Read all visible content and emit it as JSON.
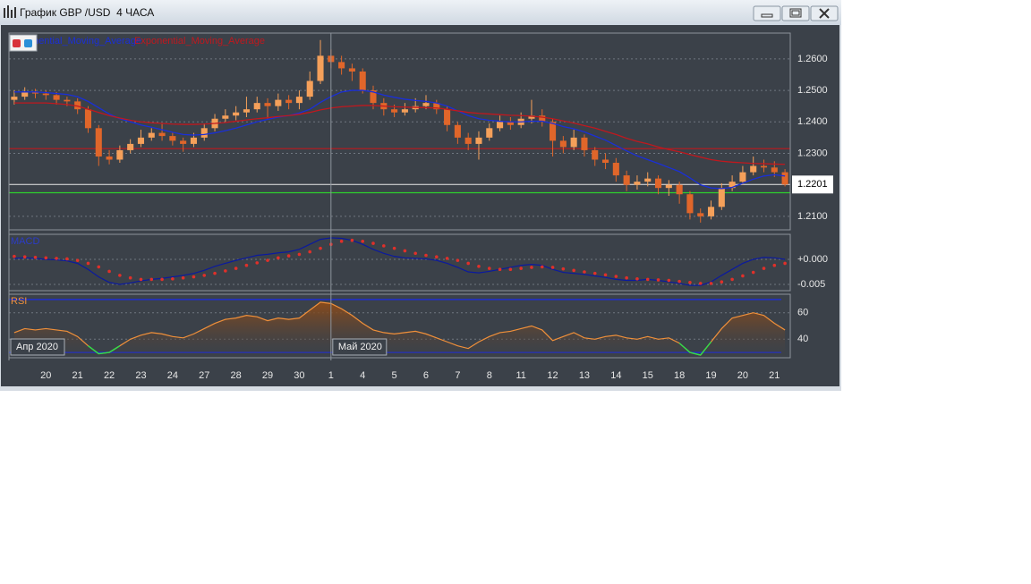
{
  "window": {
    "title": "График GBP /USD  4 ЧАСА"
  },
  "chart_data": [
    {
      "type": "candlestick",
      "categories": [
        null,
        null,
        null,
        "20",
        null,
        null,
        "21",
        null,
        null,
        "22",
        null,
        null,
        "23",
        null,
        null,
        "24",
        null,
        null,
        "27",
        null,
        null,
        "28",
        null,
        null,
        "29",
        null,
        null,
        "30",
        null,
        null,
        "1",
        null,
        null,
        "4",
        null,
        null,
        "5",
        null,
        null,
        "6",
        null,
        null,
        "7",
        null,
        null,
        "8",
        null,
        null,
        "11",
        null,
        null,
        "12",
        null,
        null,
        "13",
        null,
        null,
        "14",
        null,
        null,
        "15",
        null,
        null,
        "18",
        null,
        null,
        "19",
        null,
        null,
        "20",
        null,
        null,
        "21",
        null
      ],
      "months": [
        "Апр 2020",
        "Май 2020"
      ],
      "open": [
        1.247,
        1.248,
        1.2495,
        1.249,
        1.2485,
        1.247,
        1.2465,
        1.244,
        1.238,
        1.229,
        1.228,
        1.231,
        1.233,
        1.235,
        1.2365,
        1.2355,
        1.234,
        1.233,
        1.235,
        1.238,
        1.241,
        1.242,
        1.243,
        1.244,
        1.246,
        1.245,
        1.247,
        1.246,
        1.248,
        1.253,
        1.261,
        1.259,
        1.257,
        1.256,
        1.25,
        1.246,
        1.244,
        1.243,
        1.244,
        1.245,
        1.246,
        1.244,
        1.239,
        1.235,
        1.233,
        1.235,
        1.238,
        1.24,
        1.239,
        1.241,
        1.242,
        1.24,
        1.234,
        1.232,
        1.235,
        1.231,
        1.228,
        1.227,
        1.223,
        1.22,
        1.221,
        1.222,
        1.219,
        1.22,
        1.217,
        1.211,
        1.21,
        1.213,
        1.219,
        1.221,
        1.224,
        1.226,
        1.2255,
        1.224
      ],
      "high": [
        1.25,
        1.251,
        1.2505,
        1.25,
        1.2495,
        1.248,
        1.2475,
        1.245,
        1.239,
        1.231,
        1.2325,
        1.2345,
        1.2375,
        1.238,
        1.2395,
        1.2365,
        1.235,
        1.2365,
        1.2395,
        1.2425,
        1.244,
        1.245,
        1.248,
        1.248,
        1.2475,
        1.249,
        1.2485,
        1.25,
        1.256,
        1.266,
        1.263,
        1.261,
        1.2585,
        1.257,
        1.2515,
        1.2475,
        1.2455,
        1.246,
        1.2475,
        1.2485,
        1.247,
        1.245,
        1.24,
        1.2365,
        1.237,
        1.2395,
        1.242,
        1.2415,
        1.243,
        1.247,
        1.244,
        1.241,
        1.2355,
        1.2375,
        1.236,
        1.232,
        1.23,
        1.2285,
        1.2245,
        1.223,
        1.224,
        1.223,
        1.2215,
        1.221,
        1.218,
        1.2125,
        1.215,
        1.2205,
        1.223,
        1.226,
        1.229,
        1.228,
        1.2275,
        1.225
      ],
      "low": [
        1.2455,
        1.247,
        1.2475,
        1.247,
        1.2455,
        1.245,
        1.2425,
        1.2365,
        1.226,
        1.2265,
        1.227,
        1.23,
        1.232,
        1.234,
        1.234,
        1.2325,
        1.2305,
        1.232,
        1.234,
        1.237,
        1.24,
        1.2405,
        1.2415,
        1.243,
        1.241,
        1.2435,
        1.244,
        1.244,
        1.247,
        1.252,
        1.257,
        1.255,
        1.253,
        1.249,
        1.244,
        1.242,
        1.2415,
        1.242,
        1.243,
        1.244,
        1.2425,
        1.237,
        1.233,
        1.231,
        1.228,
        1.234,
        1.237,
        1.2375,
        1.238,
        1.2395,
        1.2385,
        1.229,
        1.23,
        1.231,
        1.229,
        1.226,
        1.225,
        1.221,
        1.218,
        1.2185,
        1.2195,
        1.217,
        1.2165,
        1.214,
        1.209,
        1.208,
        1.209,
        1.212,
        1.218,
        1.22,
        1.223,
        1.224,
        1.2225,
        1.2195
      ],
      "close": [
        1.248,
        1.2495,
        1.249,
        1.2485,
        1.247,
        1.2465,
        1.244,
        1.238,
        1.229,
        1.228,
        1.231,
        1.233,
        1.235,
        1.2365,
        1.2355,
        1.234,
        1.233,
        1.235,
        1.238,
        1.241,
        1.242,
        1.243,
        1.244,
        1.246,
        1.245,
        1.247,
        1.246,
        1.248,
        1.253,
        1.261,
        1.259,
        1.257,
        1.256,
        1.25,
        1.246,
        1.244,
        1.243,
        1.244,
        1.245,
        1.246,
        1.244,
        1.239,
        1.235,
        1.233,
        1.235,
        1.238,
        1.24,
        1.239,
        1.241,
        1.242,
        1.24,
        1.234,
        1.232,
        1.235,
        1.231,
        1.228,
        1.227,
        1.223,
        1.22,
        1.221,
        1.222,
        1.219,
        1.22,
        1.217,
        1.211,
        1.21,
        1.213,
        1.219,
        1.221,
        1.224,
        1.226,
        1.2255,
        1.224,
        1.2201
      ],
      "up_color": "#f5a05a",
      "down_color": "#e0662a",
      "series": [
        {
          "name": "Exponential_Moving_Average",
          "color": "#1a2fd8",
          "values": [
            1.2495,
            1.2495,
            1.2495,
            1.2493,
            1.249,
            1.2487,
            1.248,
            1.2465,
            1.2445,
            1.2425,
            1.241,
            1.24,
            1.239,
            1.2383,
            1.2375,
            1.2367,
            1.236,
            1.2358,
            1.236,
            1.2365,
            1.2372,
            1.238,
            1.239,
            1.24,
            1.2408,
            1.2415,
            1.242,
            1.2428,
            1.244,
            1.2462,
            1.248,
            1.2495,
            1.25,
            1.25,
            1.2495,
            1.2485,
            1.2478,
            1.2472,
            1.2468,
            1.2465,
            1.246,
            1.245,
            1.2435,
            1.242,
            1.241,
            1.2405,
            1.2402,
            1.24,
            1.24,
            1.2402,
            1.2402,
            1.2395,
            1.2385,
            1.2378,
            1.2368,
            1.2355,
            1.2342,
            1.2325,
            1.2308,
            1.2292,
            1.228,
            1.2268,
            1.2255,
            1.2242,
            1.2222,
            1.22,
            1.219,
            1.2188,
            1.2192,
            1.2205,
            1.2218,
            1.2228,
            1.2232,
            1.2228
          ]
        },
        {
          "name": "Exponential_Moving_Average",
          "color": "#c0181e",
          "values": [
            1.246,
            1.246,
            1.246,
            1.246,
            1.2458,
            1.2455,
            1.245,
            1.244,
            1.243,
            1.242,
            1.2412,
            1.2405,
            1.24,
            1.2397,
            1.2395,
            1.2393,
            1.2392,
            1.2392,
            1.2393,
            1.2395,
            1.2398,
            1.2402,
            1.2406,
            1.241,
            1.2413,
            1.2417,
            1.242,
            1.2424,
            1.243,
            1.2438,
            1.2444,
            1.2448,
            1.245,
            1.2452,
            1.2452,
            1.245,
            1.2448,
            1.2447,
            1.2446,
            1.2445,
            1.2444,
            1.244,
            1.2435,
            1.243,
            1.2427,
            1.2425,
            1.2423,
            1.2421,
            1.242,
            1.2418,
            1.2415,
            1.241,
            1.2403,
            1.2396,
            1.2388,
            1.238,
            1.237,
            1.236,
            1.2348,
            1.2338,
            1.233,
            1.232,
            1.2312,
            1.2305,
            1.2296,
            1.2288,
            1.228,
            1.2275,
            1.2272,
            1.227,
            1.2268,
            1.2267,
            1.2266,
            1.2265
          ]
        }
      ],
      "hlines": [
        {
          "value": 1.2315,
          "color": "#c0181e"
        },
        {
          "value": 1.2175,
          "color": "#2ed02e"
        }
      ],
      "ylim": [
        1.2057,
        1.2682
      ],
      "yticks": [
        {
          "value": 1.26,
          "label": "1.2600"
        },
        {
          "value": 1.25,
          "label": "1.2500"
        },
        {
          "value": 1.24,
          "label": "1.2400"
        },
        {
          "value": 1.23,
          "label": "1.2300"
        },
        {
          "value": 1.21,
          "label": "1.2100"
        }
      ],
      "grid": true
    },
    {
      "type": "line",
      "title": "MACD",
      "title_color": "#2b3cc8",
      "series": [
        {
          "color": "#0b1a9e",
          "style": "line",
          "values": [
            0.0002,
            0.0003,
            0.0002,
            0.0,
            -0.0001,
            -0.0003,
            -0.0008,
            -0.002,
            -0.0035,
            -0.0046,
            -0.005,
            -0.0047,
            -0.0043,
            -0.004,
            -0.0038,
            -0.0035,
            -0.0032,
            -0.0028,
            -0.0022,
            -0.0014,
            -0.0008,
            -0.0002,
            0.0003,
            0.0008,
            0.001,
            0.0013,
            0.0015,
            0.002,
            0.003,
            0.004,
            0.0043,
            0.0042,
            0.0038,
            0.003,
            0.002,
            0.0012,
            0.0006,
            0.0003,
            0.0002,
            0.0001,
            -0.0002,
            -0.0008,
            -0.0016,
            -0.0025,
            -0.0027,
            -0.0024,
            -0.002,
            -0.0016,
            -0.0012,
            -0.001,
            -0.0012,
            -0.002,
            -0.0026,
            -0.0028,
            -0.003,
            -0.0033,
            -0.0036,
            -0.004,
            -0.0042,
            -0.0042,
            -0.004,
            -0.0042,
            -0.0045,
            -0.0048,
            -0.0052,
            -0.0052,
            -0.0045,
            -0.0032,
            -0.002,
            -0.0008,
            0.0,
            0.0004,
            0.0003,
            0.0
          ]
        },
        {
          "color": "#e0302a",
          "style": "dots",
          "values": [
            0.0006,
            0.0005,
            0.0004,
            0.0003,
            0.0002,
            0.0001,
            -0.0002,
            -0.0008,
            -0.0015,
            -0.0024,
            -0.0032,
            -0.0037,
            -0.004,
            -0.004,
            -0.004,
            -0.0039,
            -0.0037,
            -0.0035,
            -0.0032,
            -0.0028,
            -0.0023,
            -0.0018,
            -0.0012,
            -0.0007,
            -0.0002,
            0.0003,
            0.0007,
            0.001,
            0.0015,
            0.0022,
            0.003,
            0.0036,
            0.0038,
            0.0036,
            0.0032,
            0.0027,
            0.0022,
            0.0017,
            0.0012,
            0.0008,
            0.0005,
            0.0002,
            -0.0002,
            -0.0008,
            -0.0014,
            -0.0018,
            -0.002,
            -0.002,
            -0.0018,
            -0.0016,
            -0.0015,
            -0.0016,
            -0.0019,
            -0.0022,
            -0.0025,
            -0.0028,
            -0.0031,
            -0.0034,
            -0.0037,
            -0.0039,
            -0.004,
            -0.0041,
            -0.0042,
            -0.0044,
            -0.0046,
            -0.0048,
            -0.0048,
            -0.0045,
            -0.004,
            -0.0033,
            -0.0026,
            -0.0018,
            -0.0012,
            -0.0008
          ]
        }
      ],
      "ylim": [
        -0.00625,
        0.005
      ],
      "yticks": [
        {
          "value": 0,
          "label": "+0.000"
        },
        {
          "value": -0.005,
          "label": "-0.005"
        }
      ],
      "grid": true
    },
    {
      "type": "line",
      "title": "RSI",
      "title_color": "#f0903a",
      "series": [
        {
          "color": "#f0903a",
          "style": "line",
          "values": [
            45,
            48,
            47,
            48,
            47,
            46,
            42,
            35,
            29,
            30,
            35,
            40,
            43,
            45,
            44,
            42,
            41,
            44,
            48,
            52,
            55,
            56,
            58,
            57,
            54,
            56,
            55,
            56,
            62,
            68,
            67,
            63,
            58,
            52,
            47,
            45,
            44,
            45,
            46,
            44,
            41,
            38,
            35,
            33,
            38,
            42,
            45,
            46,
            48,
            50,
            47,
            39,
            42,
            45,
            41,
            40,
            42,
            43,
            41,
            40,
            42,
            40,
            41,
            37,
            30,
            28,
            38,
            48,
            56,
            58,
            60,
            58,
            52,
            47
          ]
        }
      ],
      "levels": [
        70,
        30
      ],
      "level_color": "#1f2fd0",
      "oversold_color": "#2ee04a",
      "fill": true,
      "ylim": [
        26,
        74
      ],
      "yticks": [
        60,
        40
      ],
      "grid": true
    }
  ]
}
